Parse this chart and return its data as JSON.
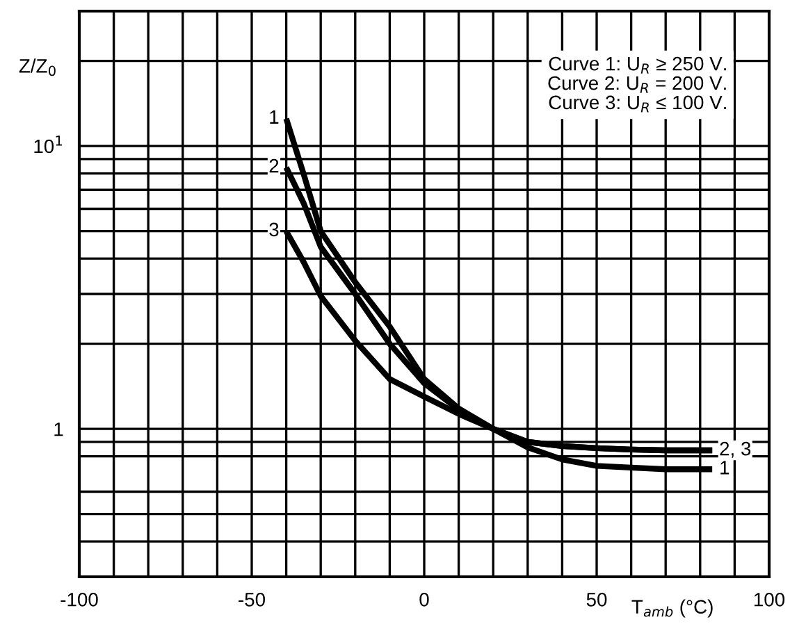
{
  "chart_data": {
    "type": "line",
    "xlabel": "T$_{amb}$ (°C)",
    "ylabel": "Z/Z$_{0}$",
    "log": "y",
    "xlim": [
      -100,
      100
    ],
    "xticks": [
      -100,
      {
        "value": -90,
        "label": null
      },
      {
        "value": -80,
        "label": null
      },
      {
        "value": -70,
        "label": null
      },
      {
        "value": -60,
        "label": null
      },
      -50,
      {
        "value": -40,
        "label": null
      },
      {
        "value": -30,
        "label": null
      },
      {
        "value": -20,
        "label": null
      },
      {
        "value": -10,
        "label": null
      },
      0,
      {
        "value": 10,
        "label": null
      },
      {
        "value": 20,
        "label": null
      },
      {
        "value": 30,
        "label": null
      },
      {
        "value": 40,
        "label": null
      },
      50,
      {
        "value": 60,
        "label": null
      },
      {
        "value": 70,
        "label": null
      },
      {
        "value": 80,
        "label": null
      },
      {
        "value": 90,
        "label": null
      },
      100
    ],
    "ylim": [
      0.3,
      30
    ],
    "yticks": [
      {
        "value": 0.4,
        "label": null
      },
      {
        "value": 0.5,
        "label": null
      },
      {
        "value": 0.6,
        "label": null
      },
      {
        "value": 0.8,
        "label": null
      },
      {
        "value": 0.9,
        "label": null
      },
      1,
      {
        "value": 2,
        "label": null
      },
      {
        "value": 3,
        "label": null
      },
      {
        "value": 4,
        "label": null
      },
      {
        "value": 5,
        "label": null
      },
      {
        "value": 6,
        "label": null
      },
      {
        "value": 7,
        "label": null
      },
      {
        "value": 8,
        "label": null
      },
      {
        "value": 9,
        "label": null
      },
      {
        "value": 10,
        "label": "10$^{1}$"
      },
      {
        "value": 20,
        "label": null
      }
    ],
    "grid": true,
    "marker": "none",
    "line_style": "solid",
    "x": [
      -40,
      -35,
      -30,
      -20,
      -10,
      0,
      10,
      20,
      30,
      40,
      50,
      60,
      70,
      83.5
    ],
    "series": [
      {
        "name": "1",
        "color": "#000000",
        "values": [
          12.5,
          8,
          5.0,
          3.3,
          2.3,
          1.5,
          1.18,
          1.0,
          0.86,
          0.78,
          0.74,
          0.73,
          0.72,
          0.72
        ]
      },
      {
        "name": "2",
        "color": "#000000",
        "values": [
          8.4,
          6.3,
          4.4,
          3.0,
          2.0,
          1.45,
          1.17,
          1.0,
          0.9,
          0.87,
          0.855,
          0.845,
          0.84,
          0.84
        ]
      },
      {
        "name": "3",
        "color": "#000000",
        "values": [
          5.0,
          3.9,
          2.95,
          2.05,
          1.5,
          1.3,
          1.13,
          1.0,
          0.9,
          0.87,
          0.855,
          0.845,
          0.84,
          0.84
        ]
      }
    ],
    "annotations": [
      "Curve 1: U$_{R}$ ≥ 250 V.\nCurve 2: U$_{R}$ = 200 V.\nCurve 3: U$_{R}$ ≤ 100 V.",
      {
        "text": "2, 3",
        "x": 83.5,
        "y": 0.84
      },
      {
        "text": "1",
        "x": 83.5,
        "y": 0.72
      }
    ]
  }
}
